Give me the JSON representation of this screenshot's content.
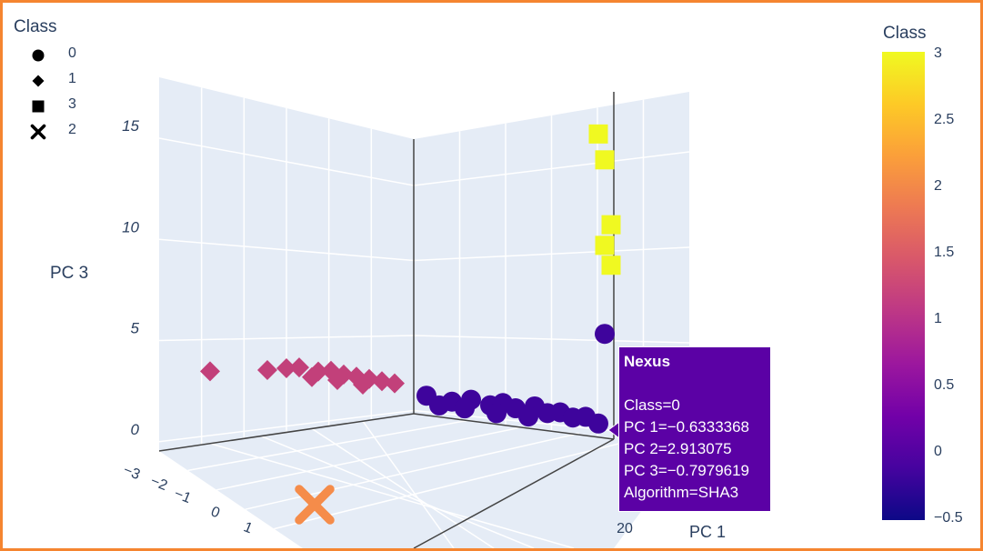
{
  "legend": {
    "title": "Class",
    "items": [
      {
        "label": "0",
        "symbol": "circle"
      },
      {
        "label": "1",
        "symbol": "diamond"
      },
      {
        "label": "3",
        "symbol": "square"
      },
      {
        "label": "2",
        "symbol": "x"
      }
    ]
  },
  "colorbar": {
    "title": "Class",
    "ticks": [
      "3",
      "2.5",
      "2",
      "1.5",
      "1",
      "0.5",
      "0",
      "−0.5"
    ],
    "colors": [
      "#0d0887",
      "#46039f",
      "#7201a8",
      "#9c179e",
      "#bd3786",
      "#d8576b",
      "#ed7953",
      "#fb9f3a",
      "#fdca26",
      "#f0f921"
    ]
  },
  "hover": {
    "title": "Nexus",
    "lines": [
      "Class=0",
      "PC 1=−0.6333368",
      "PC 2=2.913075",
      "PC 3=−0.7979619",
      "Algorithm=SHA3"
    ],
    "bg_color": "#5b01a5"
  },
  "chart_data": {
    "type": "scatter3d",
    "axes": {
      "x": {
        "label": "PC 1",
        "ticks": [
          "20"
        ]
      },
      "y": {
        "label": "",
        "ticks": [
          "−3",
          "−2",
          "−1",
          "0",
          "1"
        ]
      },
      "z": {
        "label": "PC 3",
        "ticks": [
          "0",
          "5",
          "10",
          "15"
        ],
        "range": [
          -1,
          19
        ]
      }
    },
    "grid": true,
    "legend_position": "top-left",
    "series": [
      {
        "name": "0",
        "symbol": "circle",
        "color": "#3e049c",
        "points": [
          {
            "pc2": 0.2,
            "pc3": 0.4
          },
          {
            "pc2": 0.6,
            "pc3": 0.1
          },
          {
            "pc2": 0.9,
            "pc3": 0.3
          },
          {
            "pc2": 1.2,
            "pc3": 0.0
          },
          {
            "pc2": 1.4,
            "pc3": 0.2
          },
          {
            "pc2": 1.6,
            "pc3": -0.1
          },
          {
            "pc2": 1.9,
            "pc3": 0.1
          },
          {
            "pc2": 2.1,
            "pc3": -0.3
          },
          {
            "pc2": 2.3,
            "pc3": -0.2
          },
          {
            "pc2": 2.5,
            "pc3": -0.5
          },
          {
            "pc2": 2.7,
            "pc3": -0.4
          },
          {
            "pc2": 2.9,
            "pc3": -0.8
          },
          {
            "pc2": 0.4,
            "pc3": -0.2
          },
          {
            "pc2": 0.8,
            "pc3": -0.3
          },
          {
            "pc2": 1.3,
            "pc3": -0.5
          },
          {
            "pc2": 1.8,
            "pc3": -0.6
          },
          {
            "pc2": 3.0,
            "pc3": 5.2
          }
        ]
      },
      {
        "name": "1",
        "symbol": "diamond",
        "color": "#c2407a",
        "points": [
          {
            "pc2": -3.2,
            "pc3": 1.2
          },
          {
            "pc2": -2.3,
            "pc3": 1.5
          },
          {
            "pc2": -2.0,
            "pc3": 1.7
          },
          {
            "pc2": -1.8,
            "pc3": 1.8
          },
          {
            "pc2": -1.5,
            "pc3": 1.6
          },
          {
            "pc2": -1.3,
            "pc3": 1.7
          },
          {
            "pc2": -1.1,
            "pc3": 1.5
          },
          {
            "pc2": -0.9,
            "pc3": 1.4
          },
          {
            "pc2": -0.7,
            "pc3": 1.3
          },
          {
            "pc2": -0.5,
            "pc3": 1.2
          },
          {
            "pc2": -0.3,
            "pc3": 1.1
          },
          {
            "pc2": -1.6,
            "pc3": 1.2
          },
          {
            "pc2": -1.2,
            "pc3": 1.1
          },
          {
            "pc2": -0.8,
            "pc3": 0.9
          }
        ]
      },
      {
        "name": "3",
        "symbol": "square",
        "color": "#f0f921",
        "points": [
          {
            "pc2": 2.9,
            "pc3": 18.5
          },
          {
            "pc2": 3.0,
            "pc3": 16.8
          },
          {
            "pc2": 3.1,
            "pc3": 12.5
          },
          {
            "pc2": 3.0,
            "pc3": 11.1
          },
          {
            "pc2": 3.1,
            "pc3": 9.8
          }
        ]
      },
      {
        "name": "2",
        "symbol": "x",
        "color": "#f58c4a",
        "points": [
          {
            "pc2": 0.8,
            "pc3": -4.0
          }
        ]
      }
    ]
  }
}
